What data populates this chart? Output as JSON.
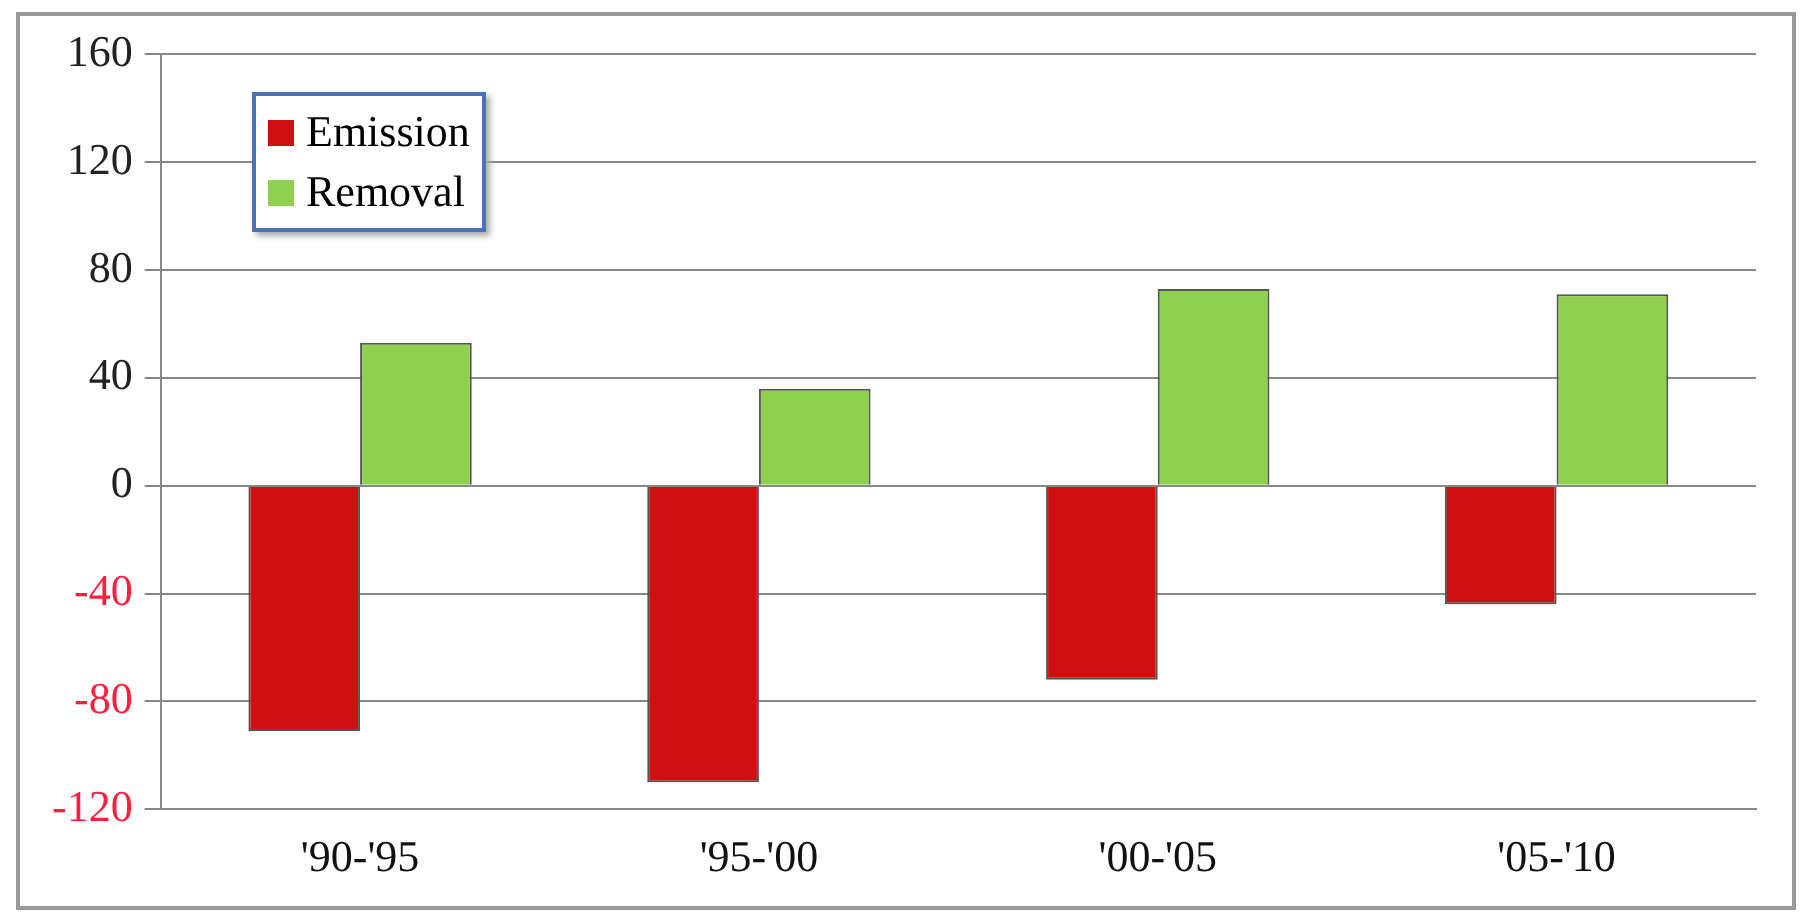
{
  "chart_data": {
    "type": "bar",
    "categories": [
      "'90-'95",
      "'95-'00",
      "'00-'05",
      "'05-'10"
    ],
    "series": [
      {
        "name": "Emission",
        "color": "#d01010",
        "values": [
          -91,
          -110,
          -72,
          -44
        ]
      },
      {
        "name": "Removal",
        "color": "#8fd14f",
        "values": [
          53,
          36,
          73,
          71
        ]
      }
    ],
    "ylim": [
      -120,
      160
    ],
    "yticks": [
      -120,
      -80,
      -40,
      0,
      40,
      80,
      120,
      160
    ],
    "grid": "y",
    "legend": "top left"
  }
}
